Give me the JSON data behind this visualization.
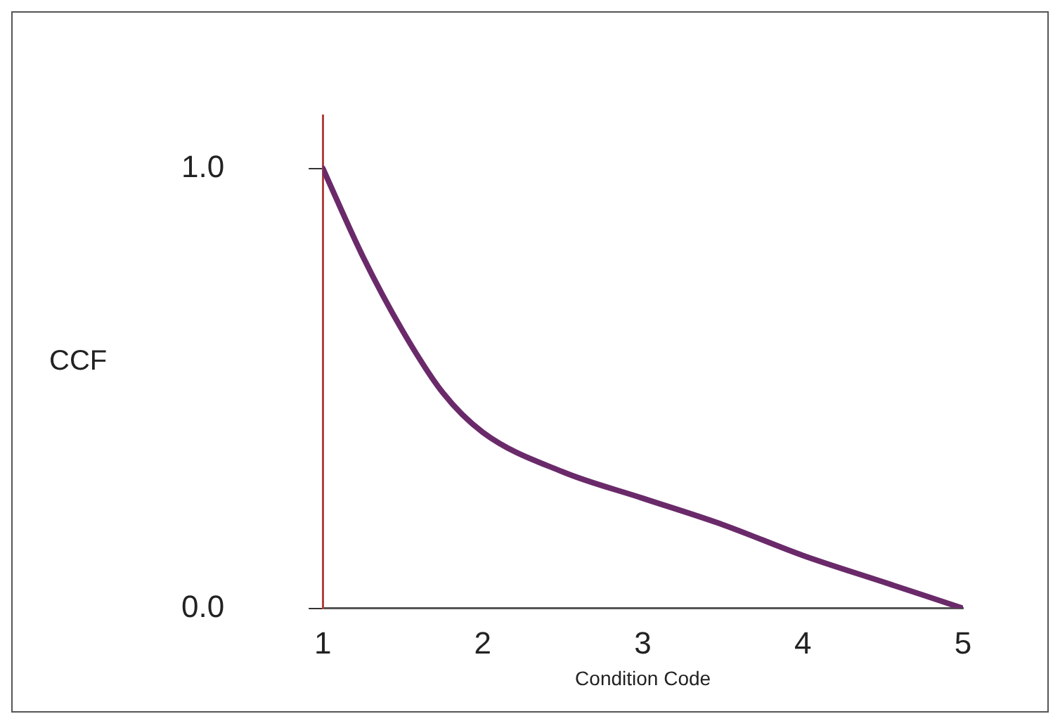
{
  "chart_data": {
    "type": "line",
    "xlabel": "Condition Code",
    "ylabel": "CCF",
    "x": [
      1,
      1.25,
      1.5,
      1.75,
      2,
      2.5,
      3,
      3.5,
      4,
      4.5,
      5
    ],
    "series": [
      {
        "color": "#6a2a6a",
        "values": [
          1.0,
          0.8,
          0.63,
          0.49,
          0.4,
          0.31,
          0.25,
          0.19,
          0.12,
          0.06,
          0.0
        ]
      }
    ],
    "xlim": [
      1,
      5
    ],
    "xticks": [
      1,
      2,
      3,
      4,
      5
    ],
    "ylim": [
      0,
      1.12
    ],
    "yticks": [
      {
        "value": 0,
        "label": "0.0"
      },
      {
        "value": 1,
        "label": "1.0"
      }
    ],
    "grid": false,
    "legend": false,
    "marker": "none",
    "line_style": "solid"
  }
}
